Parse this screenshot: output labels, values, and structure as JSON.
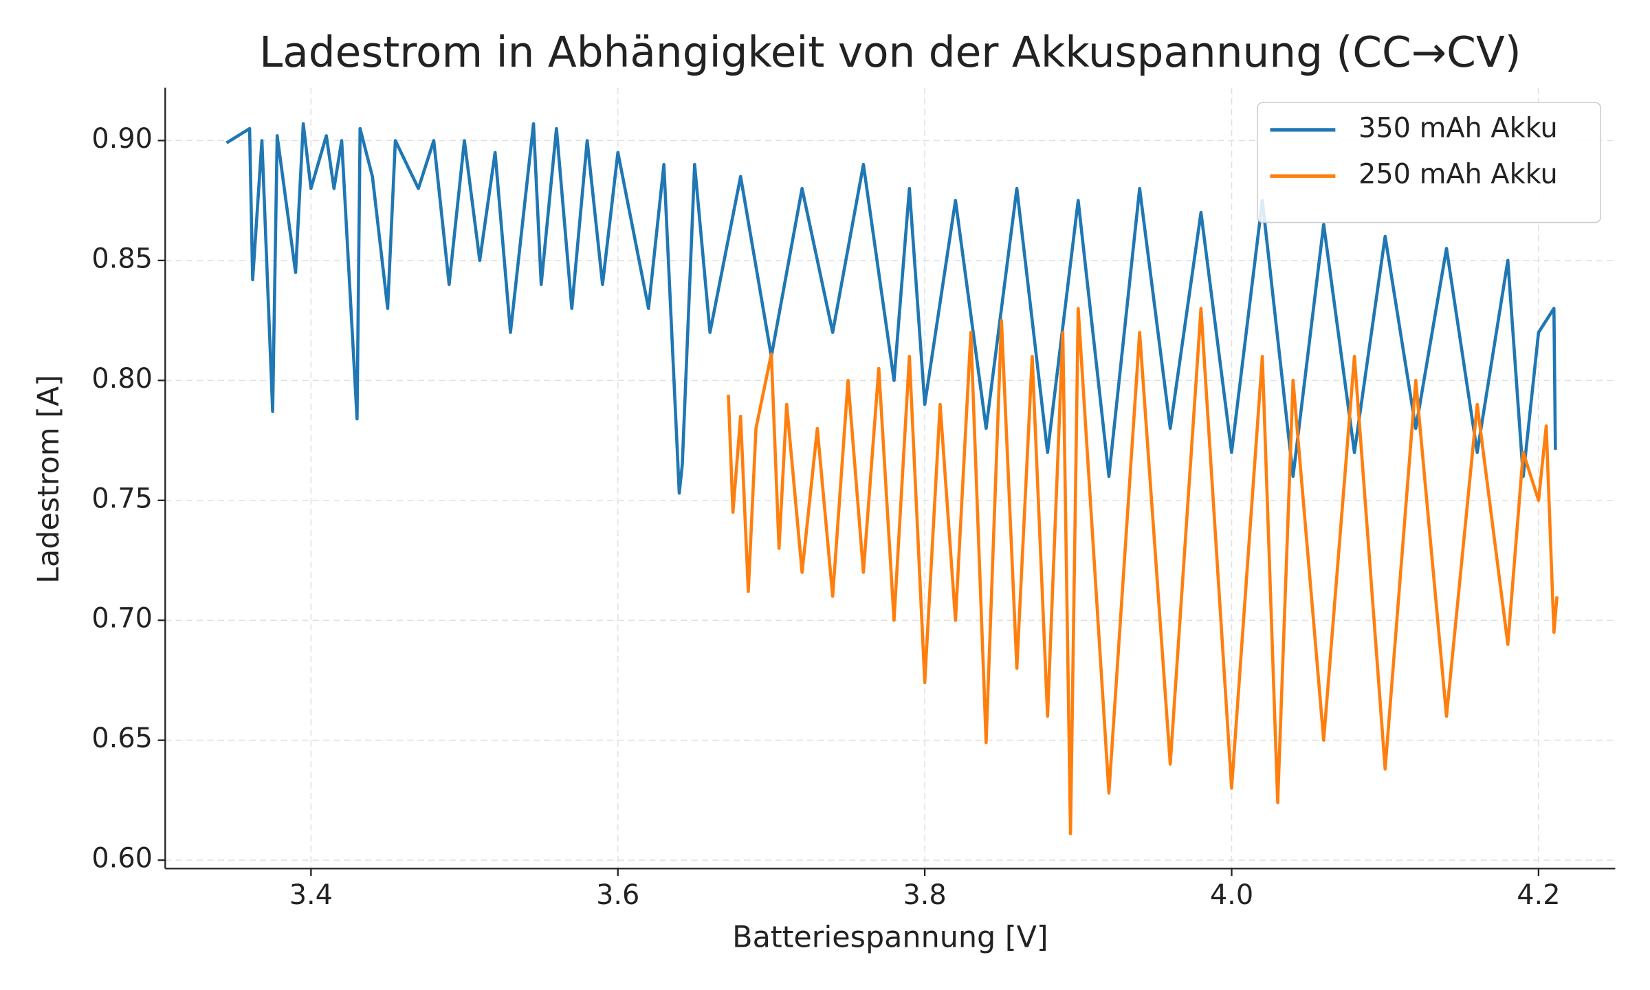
{
  "chart_data": {
    "type": "line",
    "title": "Ladestrom in Abhängigkeit von der Akkuspannung (CC→CV)",
    "x_label": "Batteriespannung [V]",
    "y_label": "Ladestrom [A]",
    "xlim": [
      3.305,
      4.25
    ],
    "ylim": [
      0.5965,
      0.922
    ],
    "xticks": [
      3.4,
      3.6,
      3.8,
      {
        "value": 4,
        "label": "4.0"
      },
      4.2
    ],
    "yticks": [
      {
        "value": 0.6,
        "label": "0.60"
      },
      0.65,
      {
        "value": 0.7,
        "label": "0.70"
      },
      0.75,
      {
        "value": 0.8,
        "label": "0.80"
      },
      0.85,
      {
        "value": 0.9,
        "label": "0.90"
      }
    ],
    "grid": true,
    "legend": "upper right",
    "series": [
      {
        "name": "350 mAh Akku",
        "color": "#1f77b4",
        "x": [
          3.345,
          3.36,
          3.362,
          3.368,
          3.375,
          3.378,
          3.39,
          3.395,
          3.4,
          3.41,
          3.415,
          3.42,
          3.43,
          3.432,
          3.44,
          3.45,
          3.455,
          3.47,
          3.48,
          3.49,
          3.5,
          3.51,
          3.52,
          3.53,
          3.545,
          3.55,
          3.56,
          3.57,
          3.58,
          3.59,
          3.6,
          3.62,
          3.63,
          3.64,
          3.642,
          3.65,
          3.66,
          3.68,
          3.7,
          3.72,
          3.74,
          3.76,
          3.78,
          3.79,
          3.8,
          3.82,
          3.84,
          3.86,
          3.88,
          3.9,
          3.92,
          3.94,
          3.96,
          3.98,
          4.0,
          4.02,
          4.04,
          4.06,
          4.08,
          4.1,
          4.12,
          4.14,
          4.16,
          4.18,
          4.19,
          4.2,
          4.21,
          4.211
        ],
        "values": [
          0.899,
          0.905,
          0.842,
          0.9,
          0.787,
          0.902,
          0.845,
          0.907,
          0.88,
          0.902,
          0.88,
          0.9,
          0.784,
          0.905,
          0.885,
          0.83,
          0.9,
          0.88,
          0.9,
          0.84,
          0.9,
          0.85,
          0.895,
          0.82,
          0.907,
          0.84,
          0.905,
          0.83,
          0.9,
          0.84,
          0.895,
          0.83,
          0.89,
          0.753,
          0.765,
          0.89,
          0.82,
          0.885,
          0.81,
          0.88,
          0.82,
          0.89,
          0.8,
          0.88,
          0.79,
          0.875,
          0.78,
          0.88,
          0.77,
          0.875,
          0.76,
          0.88,
          0.78,
          0.87,
          0.77,
          0.875,
          0.76,
          0.865,
          0.77,
          0.86,
          0.78,
          0.855,
          0.77,
          0.85,
          0.76,
          0.82,
          0.83,
          0.771
        ]
      },
      {
        "name": "250 mAh Akku",
        "color": "#ff7f0e",
        "x": [
          3.672,
          3.675,
          3.68,
          3.685,
          3.69,
          3.7,
          3.705,
          3.71,
          3.72,
          3.73,
          3.74,
          3.75,
          3.76,
          3.77,
          3.78,
          3.79,
          3.8,
          3.81,
          3.82,
          3.83,
          3.84,
          3.85,
          3.86,
          3.87,
          3.88,
          3.89,
          3.895,
          3.9,
          3.92,
          3.94,
          3.96,
          3.98,
          4.0,
          4.02,
          4.03,
          4.04,
          4.06,
          4.08,
          4.1,
          4.12,
          4.14,
          4.16,
          4.18,
          4.19,
          4.2,
          4.205,
          4.21,
          4.212
        ],
        "values": [
          0.794,
          0.745,
          0.785,
          0.712,
          0.78,
          0.811,
          0.73,
          0.79,
          0.72,
          0.78,
          0.71,
          0.8,
          0.72,
          0.805,
          0.7,
          0.81,
          0.674,
          0.79,
          0.7,
          0.82,
          0.649,
          0.825,
          0.68,
          0.81,
          0.66,
          0.82,
          0.611,
          0.83,
          0.628,
          0.82,
          0.64,
          0.83,
          0.63,
          0.81,
          0.624,
          0.8,
          0.65,
          0.81,
          0.638,
          0.8,
          0.66,
          0.79,
          0.69,
          0.77,
          0.75,
          0.781,
          0.695,
          0.71
        ]
      }
    ]
  }
}
